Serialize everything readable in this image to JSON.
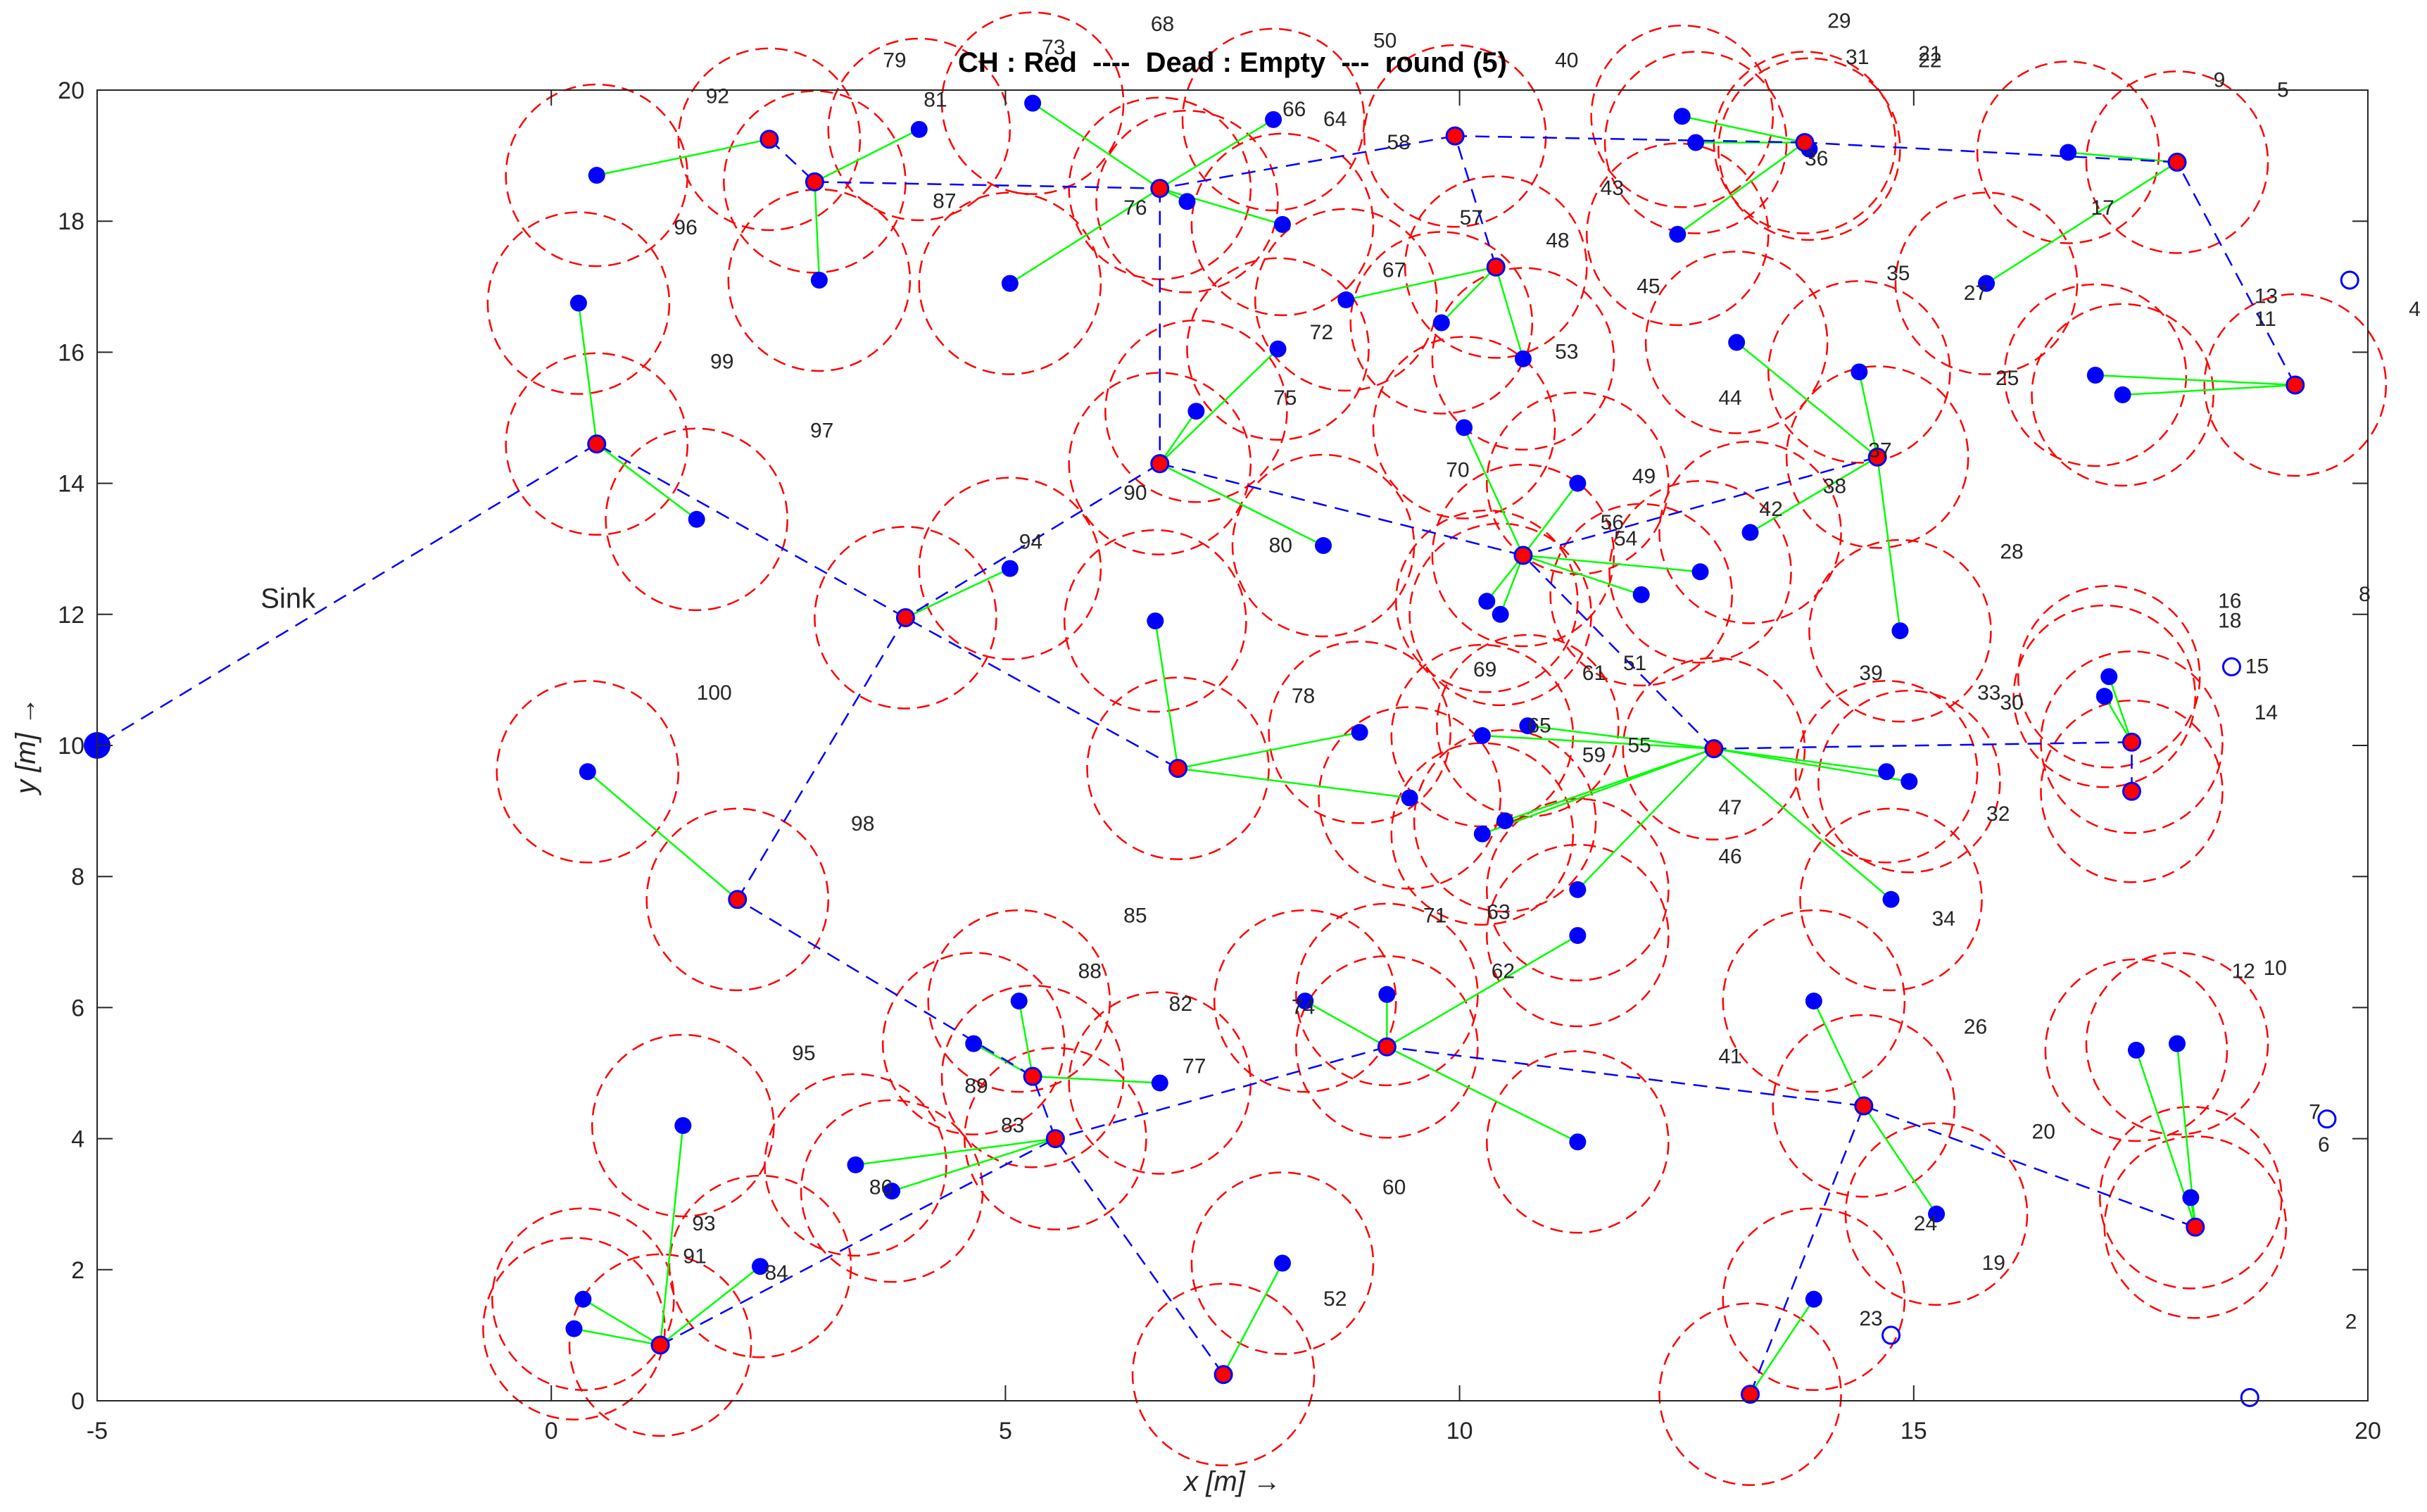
{
  "chart_data": {
    "type": "scatter",
    "title": "CH : Red  ----  Dead : Empty  ---  round (5)",
    "xlabel": "x  [m] →",
    "ylabel": "y  [m] →",
    "xlim": [
      -5,
      20
    ],
    "ylim": [
      0,
      20
    ],
    "x_ticks": [
      "-5",
      "0",
      "5",
      "10",
      "15",
      "20"
    ],
    "y_ticks": [
      "0",
      "2",
      "4",
      "6",
      "8",
      "10",
      "12",
      "14",
      "16",
      "18",
      "20"
    ],
    "grid": false,
    "sink": {
      "label": "Sink",
      "x": -5,
      "y": 10,
      "label_x": -3.2,
      "label_y": 12.1
    },
    "colors": {
      "node": "#0000ff",
      "cluster_head": "#ff0000",
      "member_link": "#00ff00",
      "ch_route": "#0000ff",
      "range_circle": "#ff0000",
      "text": "#262626"
    },
    "cluster_heads": [
      [
        2.9,
        18.6
      ],
      [
        6.7,
        18.5
      ],
      [
        10.4,
        17.3
      ],
      [
        13.8,
        19.2
      ],
      [
        17.9,
        18.9
      ],
      [
        19.2,
        15.5
      ],
      [
        14.6,
        14.4
      ],
      [
        10.7,
        12.9
      ],
      [
        6.7,
        14.3
      ],
      [
        3.9,
        11.95
      ],
      [
        0.5,
        14.6
      ],
      [
        6.9,
        9.65
      ],
      [
        12.8,
        9.95
      ],
      [
        17.4,
        10.05
      ],
      [
        17.4,
        9.3
      ],
      [
        2.05,
        7.65
      ],
      [
        5.3,
        4.95
      ],
      [
        5.55,
        4.0
      ],
      [
        9.2,
        5.4
      ],
      [
        14.45,
        4.5
      ],
      [
        18.1,
        2.65
      ],
      [
        1.2,
        0.85
      ],
      [
        7.4,
        0.4
      ],
      [
        13.2,
        0.1
      ],
      [
        2.4,
        19.25
      ],
      [
        9.95,
        19.3
      ]
    ],
    "member_nodes": [
      [
        0.5,
        18.7
      ],
      [
        0.3,
        16.75
      ],
      [
        2.95,
        17.1
      ],
      [
        4.05,
        19.4
      ],
      [
        5.3,
        19.8
      ],
      [
        7.0,
        18.3
      ],
      [
        8.05,
        17.95
      ],
      [
        7.95,
        19.55
      ],
      [
        5.05,
        17.05
      ],
      [
        7.1,
        15.1
      ],
      [
        8.0,
        16.05
      ],
      [
        8.75,
        16.8
      ],
      [
        9.8,
        16.45
      ],
      [
        10.7,
        15.9
      ],
      [
        11.3,
        14.0
      ],
      [
        12.45,
        19.6
      ],
      [
        12.6,
        19.2
      ],
      [
        13.85,
        19.1
      ],
      [
        12.4,
        17.8
      ],
      [
        13.05,
        16.15
      ],
      [
        14.4,
        15.7
      ],
      [
        14.85,
        11.75
      ],
      [
        12.65,
        12.65
      ],
      [
        13.2,
        13.25
      ],
      [
        16.7,
        19.05
      ],
      [
        15.8,
        17.05
      ],
      [
        17.0,
        15.65
      ],
      [
        17.3,
        15.35
      ],
      [
        10.05,
        14.85
      ],
      [
        8.5,
        13.05
      ],
      [
        10.3,
        12.2
      ],
      [
        10.45,
        12.0
      ],
      [
        8.9,
        10.2
      ],
      [
        10.25,
        10.15
      ],
      [
        10.75,
        10.3
      ],
      [
        12.0,
        12.3
      ],
      [
        9.45,
        9.2
      ],
      [
        10.5,
        8.85
      ],
      [
        10.25,
        8.65
      ],
      [
        11.3,
        7.8
      ],
      [
        11.3,
        7.1
      ],
      [
        14.7,
        9.6
      ],
      [
        14.95,
        9.45
      ],
      [
        17.15,
        11.05
      ],
      [
        17.1,
        10.75
      ],
      [
        5.05,
        12.7
      ],
      [
        1.6,
        13.45
      ],
      [
        6.65,
        11.9
      ],
      [
        0.4,
        9.6
      ],
      [
        5.15,
        6.1
      ],
      [
        4.65,
        5.45
      ],
      [
        6.7,
        4.85
      ],
      [
        8.3,
        6.1
      ],
      [
        9.2,
        6.2
      ],
      [
        11.3,
        3.95
      ],
      [
        13.9,
        6.1
      ],
      [
        14.75,
        7.65
      ],
      [
        15.25,
        2.85
      ],
      [
        17.45,
        5.35
      ],
      [
        17.9,
        5.45
      ],
      [
        18.05,
        3.1
      ],
      [
        1.45,
        4.2
      ],
      [
        3.35,
        3.6
      ],
      [
        3.75,
        3.2
      ],
      [
        2.3,
        2.05
      ],
      [
        0.35,
        1.55
      ],
      [
        0.25,
        1.1
      ],
      [
        8.05,
        2.1
      ],
      [
        13.9,
        1.55
      ]
    ],
    "dead_nodes": [
      [
        19.8,
        17.1
      ],
      [
        18.5,
        11.2
      ],
      [
        19.55,
        4.3
      ],
      [
        14.75,
        1.0
      ],
      [
        18.7,
        0.05
      ]
    ],
    "node_labels": [
      {
        "t": "92",
        "x": 1.7,
        "y": 19.8
      },
      {
        "t": "96",
        "x": 1.35,
        "y": 17.8
      },
      {
        "t": "99",
        "x": 1.75,
        "y": 15.75
      },
      {
        "t": "97",
        "x": 2.85,
        "y": 14.7
      },
      {
        "t": "100",
        "x": 1.6,
        "y": 10.7
      },
      {
        "t": "98",
        "x": 3.3,
        "y": 8.7
      },
      {
        "t": "95",
        "x": 2.65,
        "y": 5.2
      },
      {
        "t": "93",
        "x": 1.55,
        "y": 2.6
      },
      {
        "t": "91",
        "x": 1.45,
        "y": 2.1
      },
      {
        "t": "84",
        "x": 2.35,
        "y": 1.85
      },
      {
        "t": "86",
        "x": 3.5,
        "y": 3.15
      },
      {
        "t": "83",
        "x": 4.95,
        "y": 4.1
      },
      {
        "t": "89",
        "x": 4.55,
        "y": 4.7
      },
      {
        "t": "88",
        "x": 5.8,
        "y": 6.45
      },
      {
        "t": "85",
        "x": 6.3,
        "y": 7.3
      },
      {
        "t": "82",
        "x": 6.8,
        "y": 5.95
      },
      {
        "t": "77",
        "x": 6.95,
        "y": 5.0
      },
      {
        "t": "74",
        "x": 8.15,
        "y": 5.9
      },
      {
        "t": "71",
        "x": 9.6,
        "y": 7.3
      },
      {
        "t": "63",
        "x": 10.3,
        "y": 7.35
      },
      {
        "t": "62",
        "x": 10.35,
        "y": 6.45
      },
      {
        "t": "60",
        "x": 9.15,
        "y": 3.15
      },
      {
        "t": "52",
        "x": 8.5,
        "y": 1.45
      },
      {
        "t": "79",
        "x": 3.65,
        "y": 20.35
      },
      {
        "t": "73",
        "x": 5.4,
        "y": 20.55
      },
      {
        "t": "68",
        "x": 6.6,
        "y": 20.9
      },
      {
        "t": "81",
        "x": 4.1,
        "y": 19.75
      },
      {
        "t": "87",
        "x": 4.2,
        "y": 18.2
      },
      {
        "t": "76",
        "x": 6.3,
        "y": 18.1
      },
      {
        "t": "66",
        "x": 8.05,
        "y": 19.6
      },
      {
        "t": "64",
        "x": 8.5,
        "y": 19.45
      },
      {
        "t": "58",
        "x": 9.2,
        "y": 19.1
      },
      {
        "t": "50",
        "x": 9.05,
        "y": 20.65
      },
      {
        "t": "40",
        "x": 11.05,
        "y": 20.35
      },
      {
        "t": "57",
        "x": 10.0,
        "y": 17.95
      },
      {
        "t": "48",
        "x": 10.95,
        "y": 17.6
      },
      {
        "t": "43",
        "x": 11.55,
        "y": 18.4
      },
      {
        "t": "45",
        "x": 11.95,
        "y": 16.9
      },
      {
        "t": "67",
        "x": 9.15,
        "y": 17.15
      },
      {
        "t": "72",
        "x": 8.35,
        "y": 16.2
      },
      {
        "t": "75",
        "x": 7.95,
        "y": 15.2
      },
      {
        "t": "53",
        "x": 11.05,
        "y": 15.9
      },
      {
        "t": "70",
        "x": 9.85,
        "y": 14.1
      },
      {
        "t": "49",
        "x": 11.9,
        "y": 14.0
      },
      {
        "t": "90",
        "x": 6.3,
        "y": 13.75
      },
      {
        "t": "94",
        "x": 5.15,
        "y": 13.0
      },
      {
        "t": "80",
        "x": 7.9,
        "y": 12.95
      },
      {
        "t": "56",
        "x": 11.55,
        "y": 13.3
      },
      {
        "t": "54",
        "x": 11.7,
        "y": 13.05
      },
      {
        "t": "69",
        "x": 10.15,
        "y": 11.05
      },
      {
        "t": "61",
        "x": 11.35,
        "y": 11.0
      },
      {
        "t": "51",
        "x": 11.8,
        "y": 11.15
      },
      {
        "t": "78",
        "x": 8.15,
        "y": 10.65
      },
      {
        "t": "65",
        "x": 10.75,
        "y": 10.2
      },
      {
        "t": "59",
        "x": 11.35,
        "y": 9.75
      },
      {
        "t": "55",
        "x": 11.85,
        "y": 9.9
      },
      {
        "t": "47",
        "x": 12.85,
        "y": 8.95
      },
      {
        "t": "46",
        "x": 12.85,
        "y": 8.2
      },
      {
        "t": "29",
        "x": 14.05,
        "y": 20.95
      },
      {
        "t": "31",
        "x": 14.25,
        "y": 20.4
      },
      {
        "t": "21",
        "x": 15.05,
        "y": 20.45
      },
      {
        "t": "22",
        "x": 15.05,
        "y": 20.35
      },
      {
        "t": "36",
        "x": 13.8,
        "y": 18.85
      },
      {
        "t": "35",
        "x": 14.7,
        "y": 17.1
      },
      {
        "t": "44",
        "x": 12.85,
        "y": 15.2
      },
      {
        "t": "37",
        "x": 14.5,
        "y": 14.4
      },
      {
        "t": "38",
        "x": 14.0,
        "y": 13.85
      },
      {
        "t": "42",
        "x": 13.3,
        "y": 13.5
      },
      {
        "t": "39",
        "x": 14.4,
        "y": 11.0
      },
      {
        "t": "28",
        "x": 15.95,
        "y": 12.85
      },
      {
        "t": "33",
        "x": 15.7,
        "y": 10.7
      },
      {
        "t": "30",
        "x": 15.95,
        "y": 10.55
      },
      {
        "t": "32",
        "x": 15.8,
        "y": 8.85
      },
      {
        "t": "34",
        "x": 15.2,
        "y": 7.25
      },
      {
        "t": "26",
        "x": 15.55,
        "y": 5.6
      },
      {
        "t": "41",
        "x": 12.85,
        "y": 5.15
      },
      {
        "t": "20",
        "x": 16.3,
        "y": 4.0
      },
      {
        "t": "24",
        "x": 15.0,
        "y": 2.6
      },
      {
        "t": "19",
        "x": 15.75,
        "y": 2.0
      },
      {
        "t": "23",
        "x": 14.4,
        "y": 1.15
      },
      {
        "t": "9",
        "x": 18.3,
        "y": 20.05
      },
      {
        "t": "5",
        "x": 19.0,
        "y": 19.9
      },
      {
        "t": "17",
        "x": 16.95,
        "y": 18.1
      },
      {
        "t": "27",
        "x": 15.55,
        "y": 16.8
      },
      {
        "t": "13",
        "x": 18.75,
        "y": 16.75
      },
      {
        "t": "11",
        "x": 18.75,
        "y": 16.4
      },
      {
        "t": "4",
        "x": 20.45,
        "y": 16.55
      },
      {
        "t": "25",
        "x": 15.9,
        "y": 15.5
      },
      {
        "t": "16",
        "x": 18.35,
        "y": 12.1
      },
      {
        "t": "18",
        "x": 18.35,
        "y": 11.8
      },
      {
        "t": "8",
        "x": 19.9,
        "y": 12.2
      },
      {
        "t": "15",
        "x": 18.65,
        "y": 11.1
      },
      {
        "t": "14",
        "x": 18.75,
        "y": 10.4
      },
      {
        "t": "12",
        "x": 18.5,
        "y": 6.45
      },
      {
        "t": "10",
        "x": 18.85,
        "y": 6.5
      },
      {
        "t": "7",
        "x": 19.35,
        "y": 4.3
      },
      {
        "t": "6",
        "x": 19.45,
        "y": 3.8
      },
      {
        "t": "2",
        "x": 19.75,
        "y": 1.1
      }
    ]
  }
}
